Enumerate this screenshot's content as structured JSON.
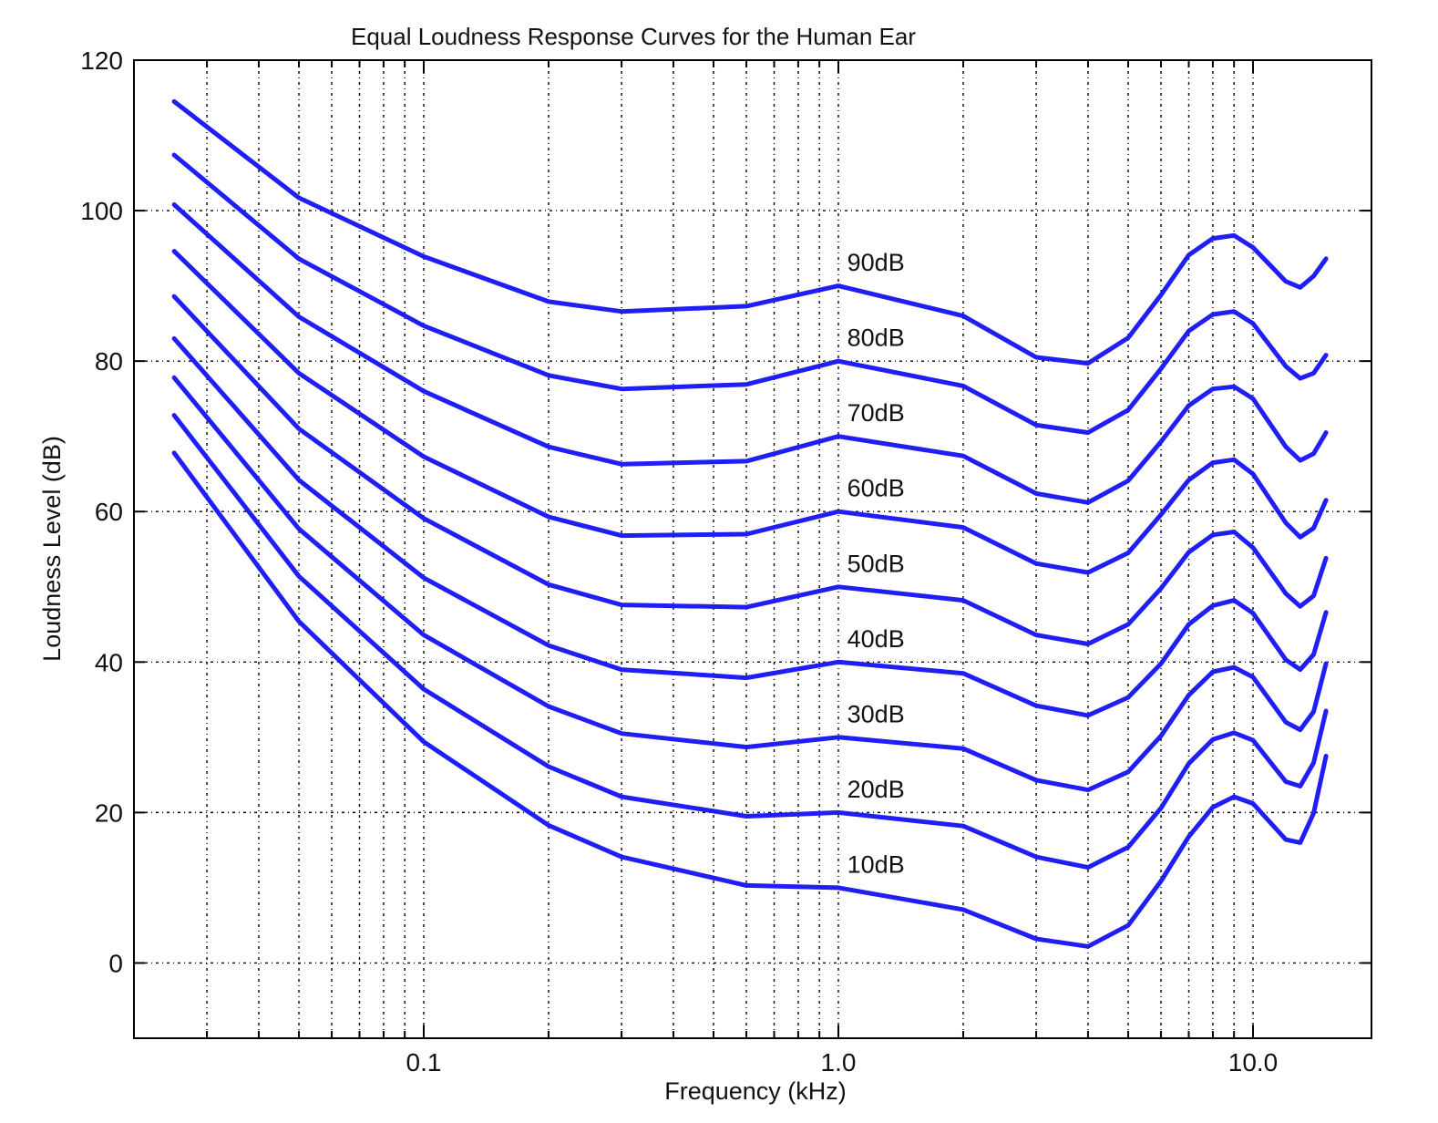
{
  "chart_data": {
    "type": "line",
    "title": "Equal Loudness Response Curves for the Human Ear",
    "xlabel": "Frequency (kHz)",
    "ylabel": "Loudness Level (dB)",
    "xscale": "log",
    "xlim": [
      0.02,
      15
    ],
    "ylim": [
      -10,
      120
    ],
    "grid": true,
    "x_tick_labels": [
      "0.1",
      "1.0",
      "10.0"
    ],
    "y_tick_labels": [
      "0",
      "20",
      "40",
      "60",
      "80",
      "100",
      "120"
    ],
    "x": [
      0.025,
      0.05,
      0.1,
      0.2,
      0.3,
      0.6,
      1.0,
      2.0,
      3.0,
      4.0,
      5.0,
      6.0,
      7.0,
      8.0,
      9.0,
      10.0,
      12.0,
      13.0,
      14.0,
      15.0
    ],
    "series": [
      {
        "name": "90dB",
        "values": [
          114.5,
          101.7,
          93.9,
          87.9,
          86.6,
          87.3,
          90.0,
          86.0,
          80.5,
          79.7,
          83.1,
          88.8,
          94.1,
          96.3,
          96.7,
          95.1,
          90.6,
          89.8,
          91.3,
          93.6
        ]
      },
      {
        "name": "80dB",
        "values": [
          107.4,
          93.6,
          84.7,
          78.1,
          76.3,
          76.9,
          80.0,
          76.7,
          71.5,
          70.5,
          73.5,
          79.0,
          84.0,
          86.2,
          86.6,
          85.0,
          79.3,
          77.7,
          78.4,
          80.8
        ]
      },
      {
        "name": "70dB",
        "values": [
          100.8,
          85.9,
          76.0,
          68.6,
          66.3,
          66.7,
          70.0,
          67.4,
          62.4,
          61.2,
          64.1,
          69.3,
          74.1,
          76.3,
          76.6,
          75.0,
          68.6,
          66.8,
          67.7,
          70.5
        ]
      },
      {
        "name": "60dB",
        "values": [
          94.6,
          78.4,
          67.3,
          59.3,
          56.8,
          57.0,
          60.0,
          57.9,
          53.1,
          51.9,
          54.5,
          59.6,
          64.2,
          66.5,
          66.9,
          65.0,
          58.5,
          56.6,
          57.8,
          61.5
        ]
      },
      {
        "name": "50dB",
        "values": [
          88.6,
          71.0,
          59.1,
          50.3,
          47.6,
          47.3,
          50.0,
          48.2,
          43.6,
          42.4,
          45.0,
          49.8,
          54.6,
          56.9,
          57.3,
          55.2,
          49.1,
          47.4,
          48.8,
          53.8
        ]
      },
      {
        "name": "40dB",
        "values": [
          83.0,
          64.2,
          51.2,
          42.2,
          39.0,
          37.9,
          40.0,
          38.5,
          34.2,
          32.9,
          35.3,
          39.8,
          45.0,
          47.5,
          48.2,
          46.5,
          40.3,
          39.0,
          41.0,
          46.6
        ]
      },
      {
        "name": "30dB",
        "values": [
          77.8,
          57.7,
          43.6,
          34.1,
          30.5,
          28.7,
          30.0,
          28.5,
          24.3,
          23.0,
          25.4,
          30.2,
          35.6,
          38.7,
          39.3,
          38.0,
          32.0,
          31.0,
          33.4,
          39.8
        ]
      },
      {
        "name": "20dB",
        "values": [
          72.8,
          51.4,
          36.4,
          26.1,
          22.1,
          19.5,
          20.0,
          18.2,
          14.1,
          12.7,
          15.4,
          20.6,
          26.5,
          29.7,
          30.6,
          29.6,
          24.1,
          23.5,
          26.6,
          33.5
        ]
      },
      {
        "name": "10dB",
        "values": [
          67.8,
          45.4,
          29.4,
          18.3,
          14.1,
          10.3,
          10.0,
          7.1,
          3.2,
          2.2,
          5.0,
          10.9,
          16.8,
          20.7,
          22.1,
          21.2,
          16.4,
          16.0,
          19.9,
          27.5
        ]
      }
    ],
    "curve_labels": [
      {
        "text": "90dB",
        "x": 1.05,
        "y": 92
      },
      {
        "text": "80dB",
        "x": 1.05,
        "y": 82
      },
      {
        "text": "70dB",
        "x": 1.05,
        "y": 72
      },
      {
        "text": "60dB",
        "x": 1.05,
        "y": 62
      },
      {
        "text": "50dB",
        "x": 1.05,
        "y": 52
      },
      {
        "text": "40dB",
        "x": 1.05,
        "y": 42
      },
      {
        "text": "30dB",
        "x": 1.05,
        "y": 32
      },
      {
        "text": "20dB",
        "x": 1.05,
        "y": 22
      },
      {
        "text": "10dB",
        "x": 1.05,
        "y": 12
      }
    ],
    "line_color": "#1f1ff5"
  }
}
